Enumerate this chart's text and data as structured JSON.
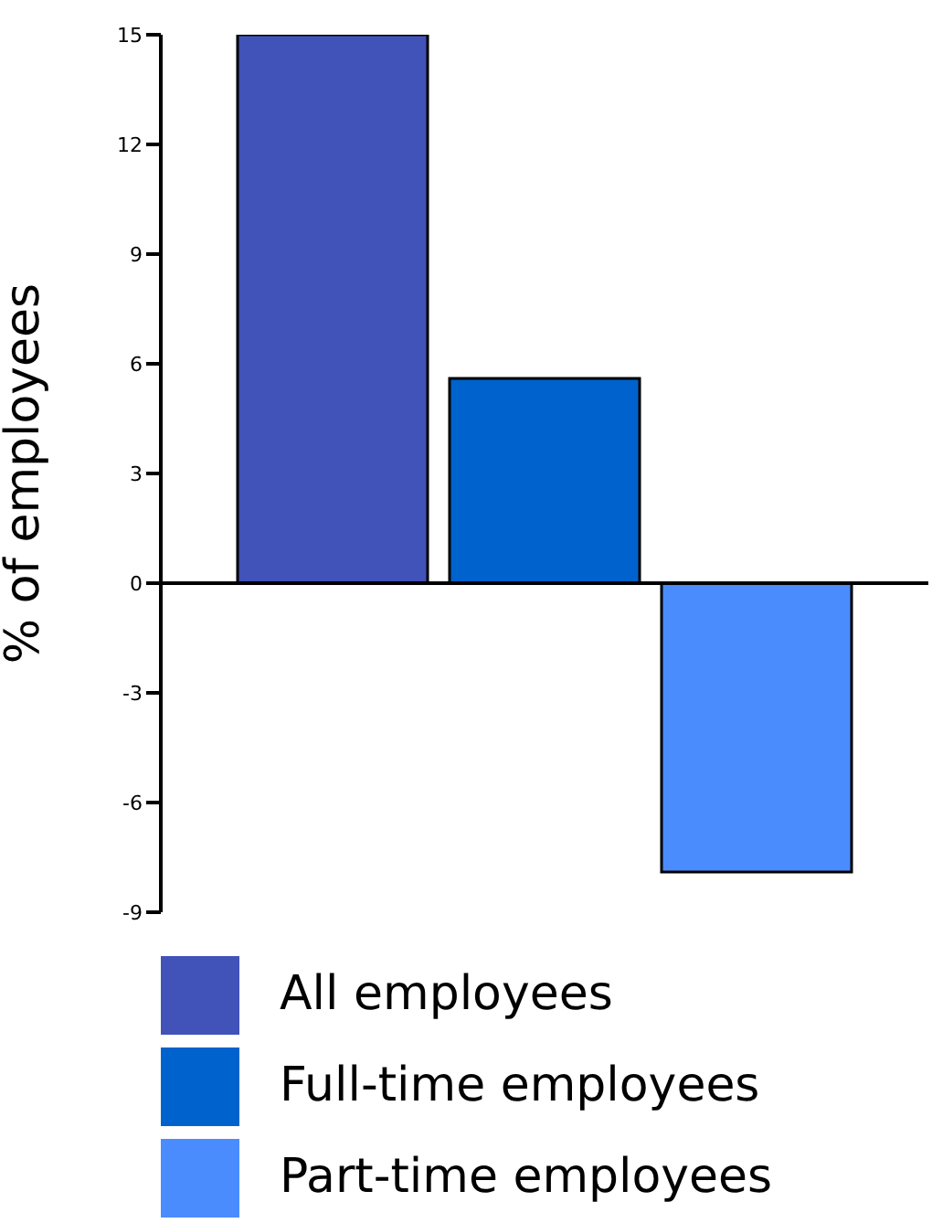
{
  "chart_data": {
    "type": "bar",
    "ylabel": "% of employees",
    "categories": [
      null
    ],
    "series": [
      {
        "name": "All employees",
        "color": "#4152b8",
        "values": [
          15
        ]
      },
      {
        "name": "Full-time employees",
        "color": "#0062cc",
        "values": [
          5.6
        ]
      },
      {
        "name": "Part-time employees",
        "color": "#4a8cfe",
        "values": [
          -7.9
        ]
      }
    ],
    "ylim": [
      -9,
      15
    ],
    "yticks": [
      -9,
      -6,
      -3,
      0,
      3,
      6,
      9,
      12,
      15
    ],
    "ref_lines": [
      {
        "axis": "y",
        "value": 0,
        "color": "#000000"
      }
    ],
    "legend": "bottom",
    "tick_labels": "y"
  }
}
